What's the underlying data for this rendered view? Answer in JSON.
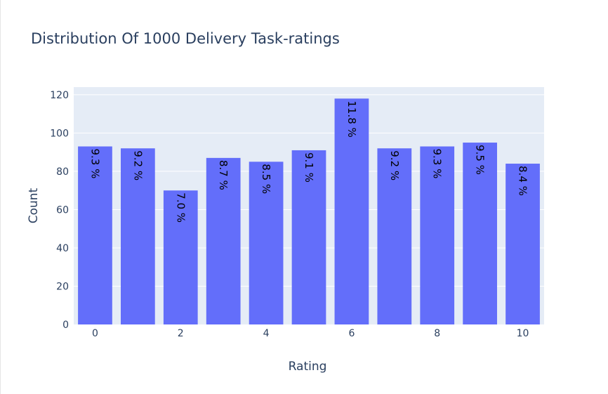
{
  "chart_data": {
    "type": "bar",
    "title": "Distribution Of 1000 Delivery Task-ratings",
    "xlabel": "Rating",
    "ylabel": "Count",
    "categories": [
      0,
      1,
      2,
      3,
      4,
      5,
      6,
      7,
      8,
      9,
      10
    ],
    "values": [
      93,
      92,
      70,
      87,
      85,
      91,
      118,
      92,
      93,
      95,
      84
    ],
    "data_labels": [
      "9.3 %",
      "9.2 %",
      "7.0 %",
      "8.7 %",
      "8.5 %",
      "9.1 %",
      "11.8 %",
      "9.2 %",
      "9.3 %",
      "9.5 %",
      "8.4 %"
    ],
    "ylim": [
      0,
      124
    ],
    "yticks": [
      0,
      20,
      40,
      60,
      80,
      100,
      120
    ],
    "xticks": [
      0,
      2,
      4,
      6,
      8,
      10
    ],
    "grid": true,
    "colors": {
      "bar": "#636efa",
      "plot_bg": "#e5ecf6",
      "grid": "#ffffff",
      "text": "#2a3f5f"
    }
  }
}
